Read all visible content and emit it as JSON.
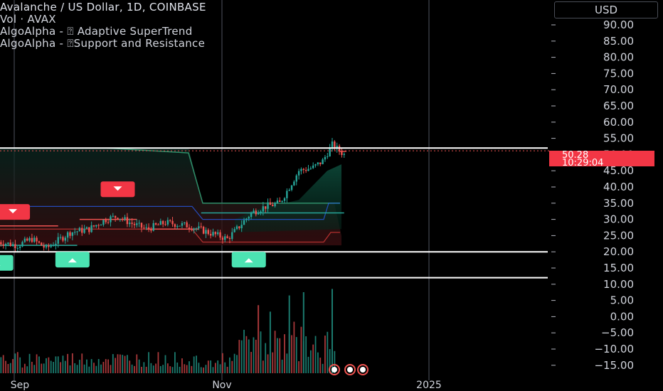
{
  "legend": {
    "title": "Avalanche / US Dollar, 1D, COINBASE",
    "volume": "Vol · AVAX",
    "indicator1": "AlgoAlpha - ⍰ Adaptive SuperTrend",
    "indicator2": "AlgoAlpha - ⍰Support and Resistance"
  },
  "currency_button": "USD",
  "last_price": {
    "value": "50.28",
    "countdown": "10:29:04",
    "color": "#f23645"
  },
  "colors": {
    "up": "#26a69a",
    "down": "#ef5350",
    "grid": "#2a2e39",
    "label_red": "#f23645",
    "label_green": "#4be3b2"
  },
  "time_axis": [
    "Sep",
    "Nov",
    "2025"
  ],
  "chart_data": {
    "type": "candlestick",
    "price_axis": {
      "ticks": [
        "90.00",
        "85.00",
        "80.00",
        "75.00",
        "70.00",
        "65.00",
        "60.00",
        "55.00",
        "50.00",
        "45.00",
        "40.00",
        "35.00",
        "30.00",
        "25.00",
        "20.00",
        "15.00",
        "10.00",
        "5.00",
        "0.00",
        "−5.00",
        "−10.00",
        "−15.00"
      ],
      "range": [
        -15,
        90
      ]
    },
    "support_resistance_levels": [
      52,
      20,
      12
    ],
    "price": {
      "anchors": [
        [
          0,
          23
        ],
        [
          8,
          22
        ],
        [
          14,
          24
        ],
        [
          20,
          21
        ],
        [
          30,
          26
        ],
        [
          38,
          27
        ],
        [
          45,
          30
        ],
        [
          50,
          31
        ],
        [
          55,
          29
        ],
        [
          62,
          27
        ],
        [
          70,
          29
        ],
        [
          80,
          28
        ],
        [
          88,
          26
        ],
        [
          92,
          25
        ],
        [
          96,
          24
        ],
        [
          100,
          27
        ],
        [
          106,
          32
        ],
        [
          112,
          34
        ],
        [
          118,
          35
        ],
        [
          122,
          40
        ],
        [
          126,
          45
        ],
        [
          132,
          46
        ],
        [
          136,
          48
        ],
        [
          140,
          53
        ],
        [
          145,
          50
        ]
      ]
    },
    "supertrend": {
      "red_segments": [
        [
          0,
          25,
          28
        ],
        [
          34,
          58,
          30
        ],
        [
          62,
          84,
          27
        ],
        [
          143,
          146,
          51
        ]
      ],
      "green_segments": [
        [
          0,
          33,
          22
        ],
        [
          85,
          145,
          32
        ]
      ]
    },
    "bands": {
      "upper": 52,
      "basis": 34,
      "lower": 22
    },
    "signals": [
      {
        "type": "sell",
        "index": 6,
        "price": 29
      },
      {
        "type": "sell",
        "index": 50,
        "price": 36
      },
      {
        "type": "buy",
        "index": 31,
        "price": 20
      },
      {
        "type": "buy",
        "index": 105,
        "price": 20
      },
      {
        "type": "buy",
        "index": -1,
        "price": 19
      }
    ],
    "volume": {
      "description": "volume histogram in lower pane, large spikes in Nov-Dec",
      "spikes": [
        [
          109,
          6
        ],
        [
          114,
          4
        ],
        [
          122,
          9
        ],
        [
          128,
          10
        ],
        [
          140,
          11
        ]
      ]
    }
  }
}
